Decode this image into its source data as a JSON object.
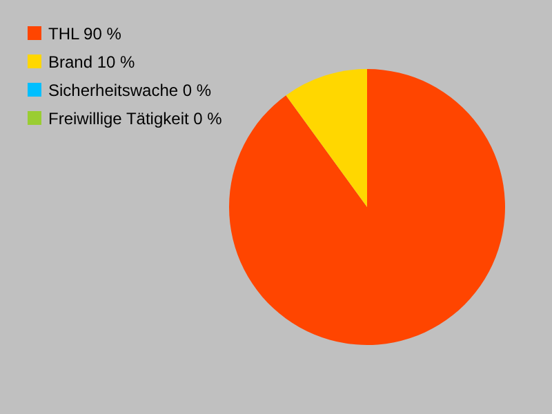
{
  "chart_data": {
    "type": "pie",
    "categories": [
      "THL 90 %",
      "Brand 10 %",
      "Sicherheitswache 0 %",
      "Freiwillige Tätigkeit 0 %"
    ],
    "values": [
      90,
      10,
      0,
      0
    ],
    "colors": [
      "#ff4500",
      "#ffd700",
      "#00bfff",
      "#9acd32"
    ],
    "legend": "top left"
  }
}
